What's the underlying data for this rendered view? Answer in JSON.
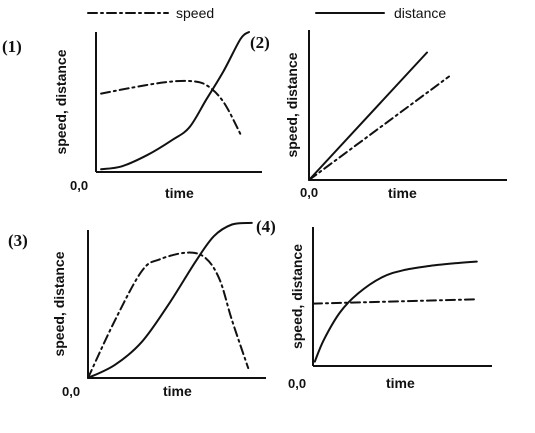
{
  "legend": [
    {
      "name": "speed",
      "style": "dashdot"
    },
    {
      "name": "distance",
      "style": "solid"
    }
  ],
  "chart_data": [
    {
      "type": "line",
      "label": "(1)",
      "xlabel": "time",
      "ylabel": "speed, distance",
      "origin_label": "0,0",
      "xlim": [
        0,
        10
      ],
      "ylim": [
        0,
        10
      ],
      "series": [
        {
          "name": "speed",
          "style": "dashdot",
          "points": [
            [
              0.3,
              5.6
            ],
            [
              2,
              6.0
            ],
            [
              4,
              6.4
            ],
            [
              5.5,
              6.5
            ],
            [
              6.5,
              6.2
            ],
            [
              7.5,
              5.0
            ],
            [
              8.5,
              2.7
            ]
          ]
        },
        {
          "name": "distance",
          "style": "solid",
          "points": [
            [
              0.3,
              0.2
            ],
            [
              1.5,
              0.4
            ],
            [
              3,
              1.2
            ],
            [
              4.5,
              2.3
            ],
            [
              5.5,
              3.2
            ],
            [
              6.5,
              5.2
            ],
            [
              7.5,
              7.2
            ],
            [
              8.5,
              9.5
            ],
            [
              9.0,
              10.0
            ]
          ]
        }
      ]
    },
    {
      "type": "line",
      "label": "(2)",
      "xlabel": "time",
      "ylabel": "speed, distance",
      "origin_label": "0,0",
      "xlim": [
        0,
        10
      ],
      "ylim": [
        0,
        10
      ],
      "series": [
        {
          "name": "speed",
          "style": "dashdot",
          "points": [
            [
              0,
              0
            ],
            [
              7.0,
              6.9
            ]
          ]
        },
        {
          "name": "distance",
          "style": "solid",
          "points": [
            [
              0,
              0
            ],
            [
              5.9,
              8.5
            ]
          ]
        }
      ]
    },
    {
      "type": "line",
      "label": "(3)",
      "xlabel": "time",
      "ylabel": "speed, distance",
      "origin_label": "0,0",
      "xlim": [
        0,
        10
      ],
      "ylim": [
        0,
        10
      ],
      "series": [
        {
          "name": "speed",
          "style": "dashdot",
          "points": [
            [
              0,
              0
            ],
            [
              1.5,
              3.5
            ],
            [
              3.0,
              6.5
            ],
            [
              4.0,
              7.2
            ],
            [
              5.5,
              7.6
            ],
            [
              6.5,
              7.3
            ],
            [
              7.3,
              6.0
            ],
            [
              8.0,
              3.5
            ],
            [
              8.9,
              0.6
            ]
          ]
        },
        {
          "name": "distance",
          "style": "solid",
          "points": [
            [
              0,
              0
            ],
            [
              1.5,
              0.8
            ],
            [
              3.0,
              2.2
            ],
            [
              4.5,
              4.5
            ],
            [
              6.0,
              7.1
            ],
            [
              7.0,
              8.6
            ],
            [
              8.0,
              9.3
            ],
            [
              9.1,
              9.4
            ]
          ]
        }
      ]
    },
    {
      "type": "line",
      "label": "(4)",
      "xlabel": "time",
      "ylabel": "speed, distance",
      "origin_label": "0,0",
      "xlim": [
        0,
        10
      ],
      "ylim": [
        0,
        10
      ],
      "series": [
        {
          "name": "speed",
          "style": "dashdot",
          "points": [
            [
              0,
              4.3
            ],
            [
              9.1,
              4.6
            ]
          ]
        },
        {
          "name": "distance",
          "style": "solid",
          "points": [
            [
              0.1,
              0.3
            ],
            [
              0.6,
              1.8
            ],
            [
              1.5,
              3.7
            ],
            [
              2.5,
              5.0
            ],
            [
              3.8,
              6.1
            ],
            [
              5.0,
              6.6
            ],
            [
              6.5,
              6.9
            ],
            [
              8.0,
              7.1
            ],
            [
              9.1,
              7.2
            ]
          ]
        }
      ]
    }
  ]
}
